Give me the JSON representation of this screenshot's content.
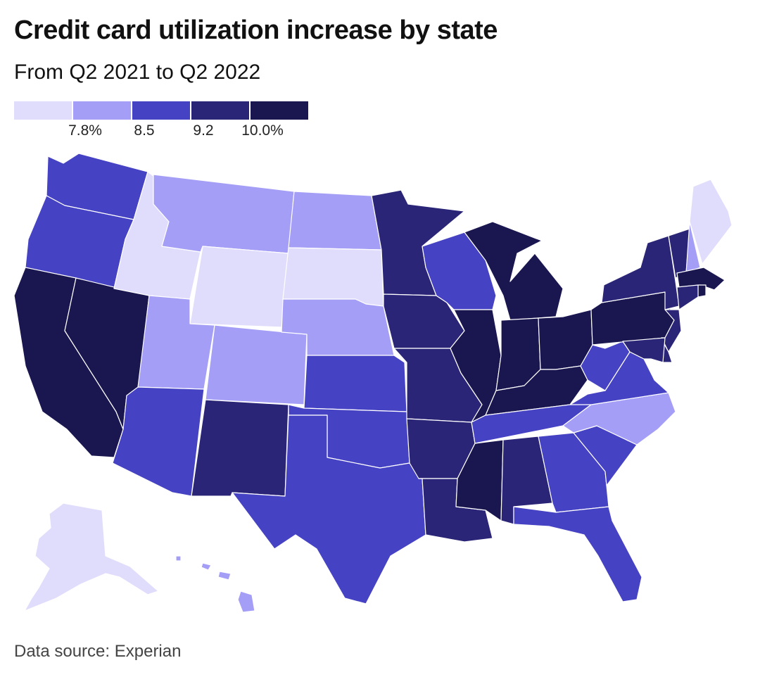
{
  "header": {
    "title": "Credit card utilization increase by state",
    "subtitle": "From Q2 2021 to Q2 2022"
  },
  "legend": {
    "colors": [
      "#e0dcfb",
      "#a49ef7",
      "#4642c4",
      "#2a2577",
      "#1a1650"
    ],
    "labels": [
      "7.8%",
      "8.5",
      "9.2",
      "10.0%"
    ]
  },
  "footer": {
    "source": "Data source: Experian"
  },
  "map_data": {
    "type": "choropleth",
    "region": "United States",
    "bins": [
      {
        "bin": 1,
        "color": "#e0dcfb",
        "range": "< 7.8%"
      },
      {
        "bin": 2,
        "color": "#a49ef7",
        "range": "7.8% – 8.5%"
      },
      {
        "bin": 3,
        "color": "#4642c4",
        "range": "8.5% – 9.2%"
      },
      {
        "bin": 4,
        "color": "#2a2577",
        "range": "9.2% – 10.0%"
      },
      {
        "bin": 5,
        "color": "#1a1650",
        "range": "> 10.0%"
      }
    ],
    "states": [
      {
        "state": "WA",
        "bin": 3
      },
      {
        "state": "OR",
        "bin": 3
      },
      {
        "state": "CA",
        "bin": 5
      },
      {
        "state": "NV",
        "bin": 5
      },
      {
        "state": "ID",
        "bin": 1
      },
      {
        "state": "MT",
        "bin": 2
      },
      {
        "state": "WY",
        "bin": 1
      },
      {
        "state": "UT",
        "bin": 2
      },
      {
        "state": "AZ",
        "bin": 3
      },
      {
        "state": "CO",
        "bin": 2
      },
      {
        "state": "NM",
        "bin": 4
      },
      {
        "state": "ND",
        "bin": 2
      },
      {
        "state": "SD",
        "bin": 1
      },
      {
        "state": "NE",
        "bin": 2
      },
      {
        "state": "KS",
        "bin": 3
      },
      {
        "state": "OK",
        "bin": 3
      },
      {
        "state": "TX",
        "bin": 3
      },
      {
        "state": "MN",
        "bin": 4
      },
      {
        "state": "IA",
        "bin": 4
      },
      {
        "state": "MO",
        "bin": 4
      },
      {
        "state": "AR",
        "bin": 4
      },
      {
        "state": "LA",
        "bin": 4
      },
      {
        "state": "WI",
        "bin": 3
      },
      {
        "state": "IL",
        "bin": 5
      },
      {
        "state": "MI",
        "bin": 5
      },
      {
        "state": "IN",
        "bin": 5
      },
      {
        "state": "OH",
        "bin": 5
      },
      {
        "state": "KY",
        "bin": 5
      },
      {
        "state": "TN",
        "bin": 3
      },
      {
        "state": "MS",
        "bin": 5
      },
      {
        "state": "AL",
        "bin": 4
      },
      {
        "state": "GA",
        "bin": 3
      },
      {
        "state": "FL",
        "bin": 3
      },
      {
        "state": "SC",
        "bin": 3
      },
      {
        "state": "NC",
        "bin": 2
      },
      {
        "state": "VA",
        "bin": 3
      },
      {
        "state": "WV",
        "bin": 3
      },
      {
        "state": "PA",
        "bin": 5
      },
      {
        "state": "NY",
        "bin": 4
      },
      {
        "state": "VT",
        "bin": 4
      },
      {
        "state": "NH",
        "bin": 2
      },
      {
        "state": "ME",
        "bin": 1
      },
      {
        "state": "MA",
        "bin": 5
      },
      {
        "state": "RI",
        "bin": 5
      },
      {
        "state": "CT",
        "bin": 4
      },
      {
        "state": "NJ",
        "bin": 4
      },
      {
        "state": "DE",
        "bin": 4
      },
      {
        "state": "MD",
        "bin": 4
      },
      {
        "state": "AK",
        "bin": 1
      },
      {
        "state": "HI",
        "bin": 2
      }
    ]
  }
}
